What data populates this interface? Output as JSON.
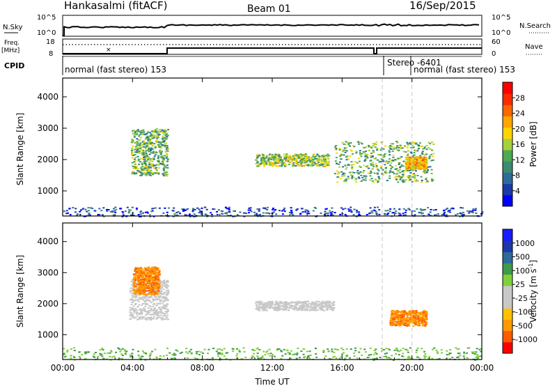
{
  "header": {
    "station": "Hankasalmi (fitACF)",
    "beam": "Beam 01",
    "date": "16/Sep/2015"
  },
  "top_panels": {
    "nsky_label": "N.Sky",
    "nsearch_label": "N.Search",
    "nsky_ticks": [
      "10^5",
      "10^0"
    ],
    "nsearch_ticks": [
      "10^5",
      "10^0"
    ],
    "freq_label_line1": "Freq.",
    "freq_label_line2": "[MHz]",
    "freq_ticks": [
      "18",
      "8"
    ],
    "nave_label": "Nave",
    "nave_ticks": [
      "60",
      "0"
    ],
    "cpid_label": "CPID",
    "cpid_segments": [
      "normal (fast stereo) 153",
      "Stereo -6401",
      "normal (fast stereo) 153"
    ]
  },
  "colors": {
    "power_scale": [
      "#0000ff",
      "#1c39a8",
      "#2e6a9a",
      "#3e8a70",
      "#4caa52",
      "#a6d13b",
      "#ffd400",
      "#ffa500",
      "#ff6600",
      "#ff2a00",
      "#ff0000"
    ],
    "velocity_scale": [
      "#ff0000",
      "#ff5a00",
      "#ff9a00",
      "#ffc000",
      "#c8c8c8",
      "#c8c8c8",
      "#7fd03a",
      "#3e9a4a",
      "#2e6a9a",
      "#1c39a8",
      "#1a1aff"
    ],
    "ground_scatter": "#c8c8c8"
  },
  "chart_data": [
    {
      "type": "heatmap",
      "title": "",
      "xlabel": "",
      "ylabel": "Slant Range [km]",
      "x_ticks": [
        "00:00",
        "04:00",
        "08:00",
        "12:00",
        "16:00",
        "20:00",
        "00:00"
      ],
      "y_ticks": [
        1000,
        2000,
        3000,
        4000
      ],
      "ylim": [
        200,
        4600
      ],
      "xlim_hours": [
        0,
        24
      ],
      "colorbar": {
        "label": "Power [dB]",
        "ticks": [
          4,
          8,
          12,
          16,
          20,
          24,
          28
        ]
      },
      "echo_regions": [
        {
          "t_start": 3.9,
          "t_end": 6.0,
          "r_min": 1500,
          "r_max": 3000,
          "power_db": 14
        },
        {
          "t_start": 11.0,
          "t_end": 15.2,
          "r_min": 1800,
          "r_max": 2200,
          "power_db": 16
        },
        {
          "t_start": 15.5,
          "t_end": 21.2,
          "r_min": 1300,
          "r_max": 2600,
          "power_db": 14
        },
        {
          "t_start": 19.6,
          "t_end": 20.8,
          "r_min": 1700,
          "r_max": 2100,
          "power_db": 22
        },
        {
          "t_start": 0.0,
          "t_end": 24.0,
          "r_min": 200,
          "r_max": 500,
          "power_db": 6
        }
      ]
    },
    {
      "type": "heatmap",
      "title": "",
      "xlabel": "Time UT",
      "ylabel": "Slant Range [km]",
      "x_ticks": [
        "00:00",
        "04:00",
        "08:00",
        "12:00",
        "16:00",
        "20:00",
        "00:00"
      ],
      "y_ticks": [
        1000,
        2000,
        3000,
        4000
      ],
      "ylim": [
        200,
        4600
      ],
      "xlim_hours": [
        0,
        24
      ],
      "colorbar": {
        "label": "Velocity [m s^-1]",
        "ticks": [
          "1000",
          "500",
          "100",
          "25",
          "-25",
          "-100",
          "-500",
          "-1000"
        ]
      },
      "echo_regions": [
        {
          "t_start": 3.8,
          "t_end": 6.0,
          "r_min": 1500,
          "r_max": 2800,
          "velocity": 0
        },
        {
          "t_start": 4.0,
          "t_end": 5.5,
          "r_min": 2300,
          "r_max": 3200,
          "velocity": -150
        },
        {
          "t_start": 11.0,
          "t_end": 15.5,
          "r_min": 1800,
          "r_max": 2100,
          "velocity": 0
        },
        {
          "t_start": 18.7,
          "t_end": 20.8,
          "r_min": 1300,
          "r_max": 1800,
          "velocity": -200
        },
        {
          "t_start": 0.0,
          "t_end": 24.0,
          "r_min": 200,
          "r_max": 600,
          "velocity": 60
        }
      ]
    }
  ],
  "vertical_markers_hours": [
    18.3,
    20.0
  ]
}
